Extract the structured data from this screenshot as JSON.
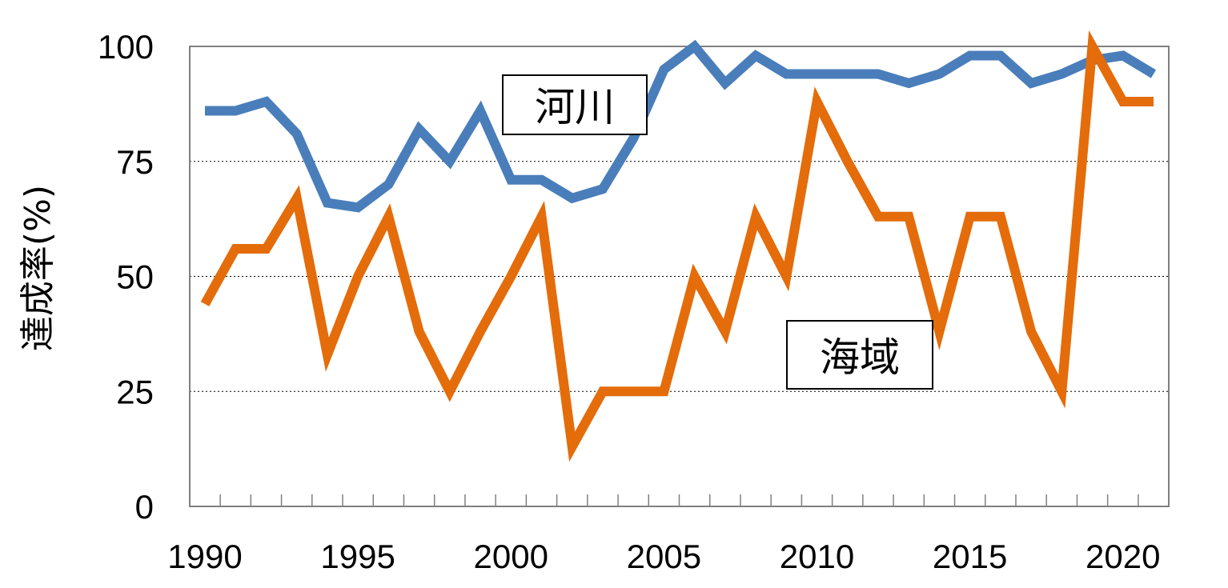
{
  "chart_data": {
    "type": "line",
    "title": "",
    "xlabel": "",
    "ylabel": "達成率(%)",
    "xlim": [
      1990,
      2021
    ],
    "ylim": [
      0,
      100
    ],
    "x": [
      1990,
      1991,
      1992,
      1993,
      1994,
      1995,
      1996,
      1997,
      1998,
      1999,
      2000,
      2001,
      2002,
      2003,
      2004,
      2005,
      2006,
      2007,
      2008,
      2009,
      2010,
      2011,
      2012,
      2013,
      2014,
      2015,
      2016,
      2017,
      2018,
      2019,
      2020,
      2021
    ],
    "x_ticks": [
      "1990",
      "1995",
      "2000",
      "2005",
      "2010",
      "2015",
      "2020"
    ],
    "x_tick_values": [
      1990,
      1995,
      2000,
      2005,
      2010,
      2015,
      2020
    ],
    "y_ticks": [
      "0",
      "25",
      "50",
      "75",
      "100"
    ],
    "y_tick_values": [
      0,
      25,
      50,
      75,
      100
    ],
    "grid": "horizontal dotted",
    "legend": "none",
    "series": [
      {
        "name": "河川",
        "color": "#4a7ebb",
        "values": [
          86,
          86,
          88,
          81,
          66,
          65,
          70,
          82,
          75,
          86,
          71,
          71,
          67,
          69,
          80,
          95,
          100,
          92,
          98,
          94,
          94,
          94,
          94,
          92,
          94,
          98,
          98,
          92,
          94,
          97,
          98,
          94
        ]
      },
      {
        "name": "海域",
        "color": "#e46c0a",
        "values": [
          44,
          56,
          56,
          67,
          33,
          50,
          63,
          38,
          25,
          38,
          50,
          63,
          13,
          25,
          25,
          25,
          50,
          38,
          63,
          50,
          88,
          75,
          63,
          63,
          38,
          63,
          63,
          38,
          25,
          100,
          88,
          88
        ]
      }
    ],
    "annotations": [
      {
        "text": "河川",
        "series": "河川"
      },
      {
        "text": "海域",
        "series": "海域"
      }
    ]
  }
}
